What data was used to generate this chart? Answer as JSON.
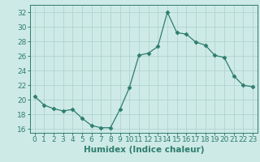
{
  "x": [
    0,
    1,
    2,
    3,
    4,
    5,
    6,
    7,
    8,
    9,
    10,
    11,
    12,
    13,
    14,
    15,
    16,
    17,
    18,
    19,
    20,
    21,
    22,
    23
  ],
  "y": [
    20.5,
    19.3,
    18.8,
    18.5,
    18.7,
    17.5,
    16.5,
    16.2,
    16.2,
    18.7,
    21.7,
    26.1,
    26.4,
    27.3,
    32.0,
    29.2,
    29.0,
    27.9,
    27.5,
    26.1,
    25.8,
    23.3,
    22.0,
    21.8
  ],
  "xlabel": "Humidex (Indice chaleur)",
  "xlim": [
    -0.5,
    23.5
  ],
  "ylim": [
    15.5,
    33.0
  ],
  "yticks": [
    16,
    18,
    20,
    22,
    24,
    26,
    28,
    30,
    32
  ],
  "xticks": [
    0,
    1,
    2,
    3,
    4,
    5,
    6,
    7,
    8,
    9,
    10,
    11,
    12,
    13,
    14,
    15,
    16,
    17,
    18,
    19,
    20,
    21,
    22,
    23
  ],
  "line_color": "#2e7d6e",
  "marker": "D",
  "marker_size": 2.5,
  "bg_color": "#ceeae6",
  "grid_color": "#b0d4cf",
  "label_fontsize": 7.5,
  "tick_fontsize": 6.5
}
